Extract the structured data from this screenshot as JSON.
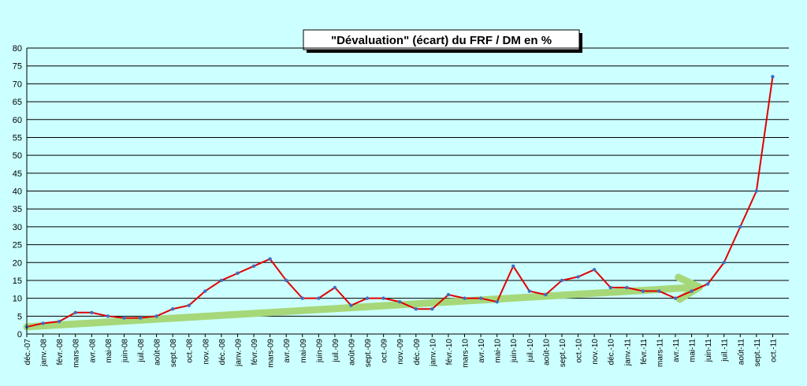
{
  "chart_data": {
    "type": "line",
    "title": "\"Dévaluation\" (écart) du FRF / DM en %",
    "xlabel": "",
    "ylabel": "",
    "ylim": [
      0,
      80
    ],
    "yticks": [
      0,
      5,
      10,
      15,
      20,
      25,
      30,
      35,
      40,
      45,
      50,
      55,
      60,
      65,
      70,
      75,
      80
    ],
    "grid": true,
    "x_tick_labels": [
      "déc.-07",
      "janv.-08",
      "févr.-08",
      "mars-08",
      "avr.-08",
      "mai-08",
      "juin-08",
      "juil.-08",
      "août-08",
      "sept.-08",
      "oct.-08",
      "nov.-08",
      "déc.-08",
      "janv.-09",
      "févr.-09",
      "mars-09",
      "avr.-09",
      "mai-09",
      "juin-09",
      "juil.-09",
      "août-09",
      "sept.-09",
      "oct.-09",
      "nov.-09",
      "déc.-09",
      "janv.-10",
      "févr.-10",
      "mars-10",
      "avr.-10",
      "mai-10",
      "juin-10",
      "juil.-10",
      "août-10",
      "sept.-10",
      "oct.-10",
      "nov.-10",
      "déc.-10",
      "janv.-11",
      "févr.-11",
      "mars-11",
      "avr.-11",
      "mai-11",
      "juin-11",
      "juil.-11",
      "août-11",
      "sept.-11",
      "oct.-11"
    ],
    "series": [
      {
        "color": "#e00000",
        "marker_color": "#3a6fc4",
        "x": [
          "déc.-07",
          "janv.-08",
          "févr.-08",
          "mars-08",
          "avr.-08",
          "mai-08",
          "juin-08",
          "juil.-08",
          "août-08",
          "sept.-08",
          "oct.-08",
          "nov.-08",
          "déc.-08",
          "janv.-09",
          "févr.-09",
          "mars-09",
          "avr.-09",
          "mai-09",
          "juin-09",
          "juil.-09",
          "août-09",
          "sept.-09",
          "oct.-09",
          "nov.-09",
          "déc.-09",
          "janv.-10",
          "févr.-10",
          "mars-10",
          "avr.-10",
          "mai-10",
          "juin-10",
          "juil.-10",
          "août-10",
          "sept.-10",
          "oct.-10",
          "nov.-10",
          "déc.-10",
          "janv.-11",
          "févr.-11",
          "mars-11",
          "avr.-11",
          "mai-11",
          "juin-11",
          "juil.-11",
          "août-11",
          "sept.-11",
          "oct.-11"
        ],
        "values": [
          2,
          3,
          3.5,
          6,
          6,
          5,
          4.5,
          4.5,
          5,
          7,
          8,
          12,
          15,
          17,
          19,
          21,
          15,
          10,
          10,
          13,
          8,
          10,
          10,
          9,
          7,
          7,
          11,
          10,
          10,
          9,
          19,
          12,
          11,
          15,
          16,
          18,
          13,
          13,
          12,
          12,
          10,
          12,
          14,
          20,
          30,
          40,
          72
        ]
      }
    ],
    "trend_arrow": {
      "color": "#a6d87a",
      "from": [
        "déc.-07",
        2
      ],
      "to": [
        "mai-11",
        13
      ]
    }
  }
}
